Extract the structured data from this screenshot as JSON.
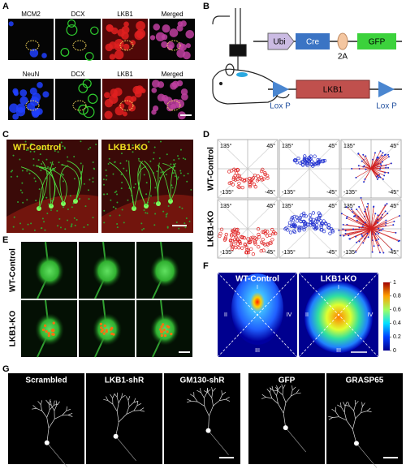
{
  "panel_a": {
    "label": "A",
    "top_row": [
      "MCM2",
      "DCX",
      "LKB1",
      "Merged"
    ],
    "bottom_row": [
      "NeuN",
      "DCX",
      "LKB1",
      "Merged"
    ]
  },
  "panel_b": {
    "label": "B",
    "construct_1": [
      "Ubi",
      "Cre",
      "2A",
      "GFP"
    ],
    "construct_2": {
      "site_left": "Lox P",
      "gene": "LKB1",
      "site_right": "Lox P"
    }
  },
  "panel_c": {
    "label": "C",
    "images": [
      "WT-Control",
      "LKB1-KO"
    ]
  },
  "panel_d": {
    "label": "D",
    "rows": [
      "WT-Control",
      "LKB1-KO"
    ],
    "angles": [
      "135°",
      "45°",
      "-135°",
      "-45°"
    ]
  },
  "panel_e": {
    "label": "E",
    "rows": [
      "WT-Control",
      "LKB1-KO"
    ]
  },
  "panel_f": {
    "label": "F",
    "images": [
      "WT-Control",
      "LKB1-KO"
    ],
    "quadrants": [
      "I",
      "II",
      "III",
      "IV"
    ],
    "colorbar_ticks": [
      1,
      0.8,
      0.6,
      0.4,
      0.2,
      0
    ]
  },
  "panel_g": {
    "label": "G",
    "images": [
      "Scrambled",
      "LKB1-shR",
      "GM130-shR",
      "GFP",
      "GRASP65"
    ]
  }
}
